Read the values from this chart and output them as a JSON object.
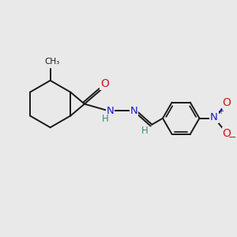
{
  "background_color": "#e9e9e9",
  "bond_color": "#1a1a1a",
  "bond_width": 1.4,
  "atom_colors": {
    "C": "#1a1a1a",
    "H": "#3a8a7a",
    "N": "#1a1acc",
    "O": "#cc1a1a",
    "methyl": "#1a1a1a"
  }
}
